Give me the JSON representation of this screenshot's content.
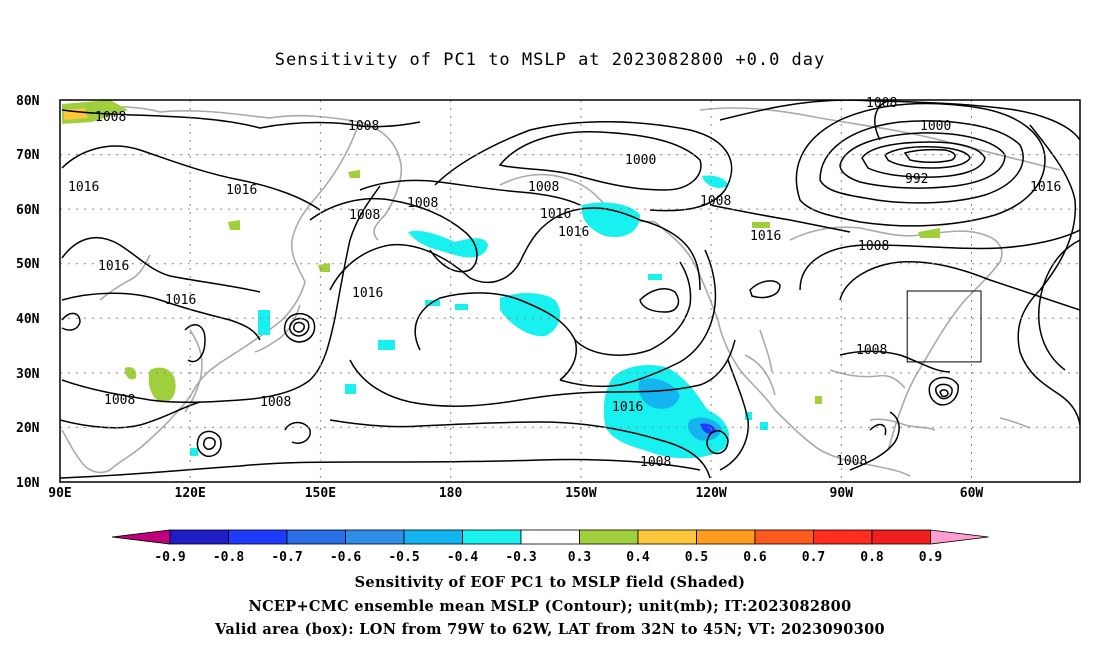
{
  "title": "Sensitivity of PC1 to MSLP at 2023082800 +0.0 day",
  "axes": {
    "lat_labels": [
      "80N",
      "70N",
      "60N",
      "50N",
      "40N",
      "30N",
      "20N",
      "10N"
    ],
    "lon_labels": [
      "90E",
      "120E",
      "150E",
      "180",
      "150W",
      "120W",
      "90W",
      "60W"
    ],
    "lon_range": [
      90,
      325
    ],
    "lat_range": [
      10,
      80
    ]
  },
  "colorbar": {
    "labels": [
      "-0.9",
      "-0.8",
      "-0.7",
      "-0.6",
      "-0.5",
      "-0.4",
      "-0.3",
      "0.3",
      "0.4",
      "0.5",
      "0.6",
      "0.7",
      "0.8",
      "0.9"
    ],
    "colors": [
      "#c0007a",
      "#1e1ec8",
      "#1e3cff",
      "#2a6fe8",
      "#2f8fe8",
      "#14b4f0",
      "#19f0f0",
      "#ffffff",
      "#a0cf3c",
      "#ffc83c",
      "#ff9b1e",
      "#ff5a1e",
      "#ff2d1e",
      "#f01e1e",
      "#ff9ecf"
    ]
  },
  "contour_labels": [
    "1008",
    "1008",
    "1016",
    "1016",
    "1016",
    "1008",
    "1008",
    "1000",
    "1008",
    "1016",
    "1016",
    "1008",
    "1016",
    "1008",
    "1000",
    "992",
    "1016",
    "1008",
    "1016",
    "1008",
    "1016",
    "1008",
    "1008",
    "1016",
    "1008",
    "1008"
  ],
  "valid_box": {
    "lon": [
      -79,
      -62
    ],
    "lat": [
      32,
      45
    ]
  },
  "captions": {
    "line1": "Sensitivity of EOF PC1 to MSLP field (Shaded)",
    "line2": "NCEP+CMC ensemble mean MSLP (Contour); unit(mb); IT:2023082800",
    "line3": "Valid area (box): LON from 79W to 62W, LAT from 32N to 45N; VT: 2023090300"
  }
}
